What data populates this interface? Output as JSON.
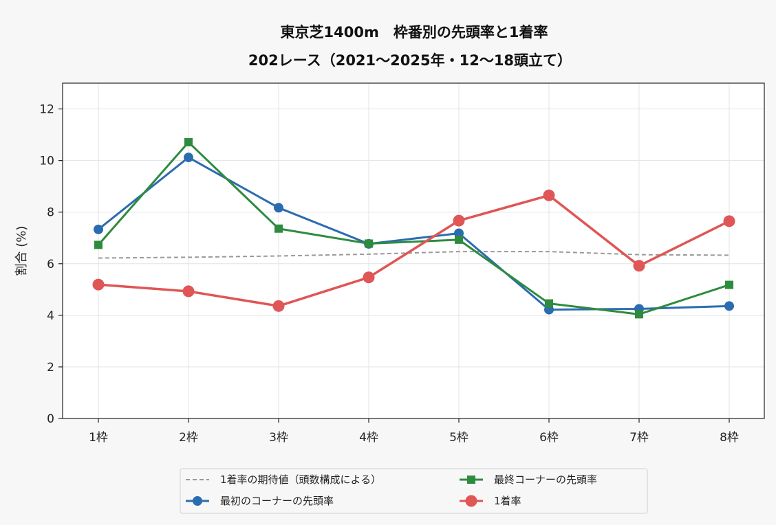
{
  "chart_data": {
    "type": "line",
    "title": "東京芝1400m　枠番別の先頭率と1着率",
    "subtitle": "202レース（2021〜2025年・12〜18頭立て）",
    "xlabel": "",
    "ylabel": "割合 (%)",
    "categories": [
      "1枠",
      "2枠",
      "3枠",
      "4枠",
      "5枠",
      "6枠",
      "7枠",
      "8枠"
    ],
    "ylim": [
      0,
      13
    ],
    "yticks": [
      0,
      2,
      4,
      6,
      8,
      10,
      12
    ],
    "grid": true,
    "legend_position": "bottom-center",
    "series": [
      {
        "name": "1着率の期待値（頭数構成による）",
        "style": "dashed",
        "color": "#999999",
        "marker": "none",
        "values": [
          6.22,
          6.25,
          6.3,
          6.37,
          6.47,
          6.47,
          6.35,
          6.33
        ]
      },
      {
        "name": "最初のコーナーの先頭率",
        "style": "solid",
        "color": "#2b6cb0",
        "marker": "circle",
        "values": [
          7.33,
          10.12,
          8.17,
          6.77,
          7.18,
          4.22,
          4.25,
          4.36
        ]
      },
      {
        "name": "最終コーナーの先頭率",
        "style": "solid",
        "color": "#2e8b3e",
        "marker": "square",
        "values": [
          6.73,
          10.71,
          7.36,
          6.78,
          6.93,
          4.46,
          4.04,
          5.18
        ]
      },
      {
        "name": "1着率",
        "style": "solid",
        "color": "#e05555",
        "marker": "circle-large",
        "values": [
          5.19,
          4.93,
          4.36,
          5.47,
          7.67,
          8.65,
          5.92,
          7.65
        ]
      }
    ],
    "legend_order": [
      0,
      2,
      1,
      3
    ]
  }
}
